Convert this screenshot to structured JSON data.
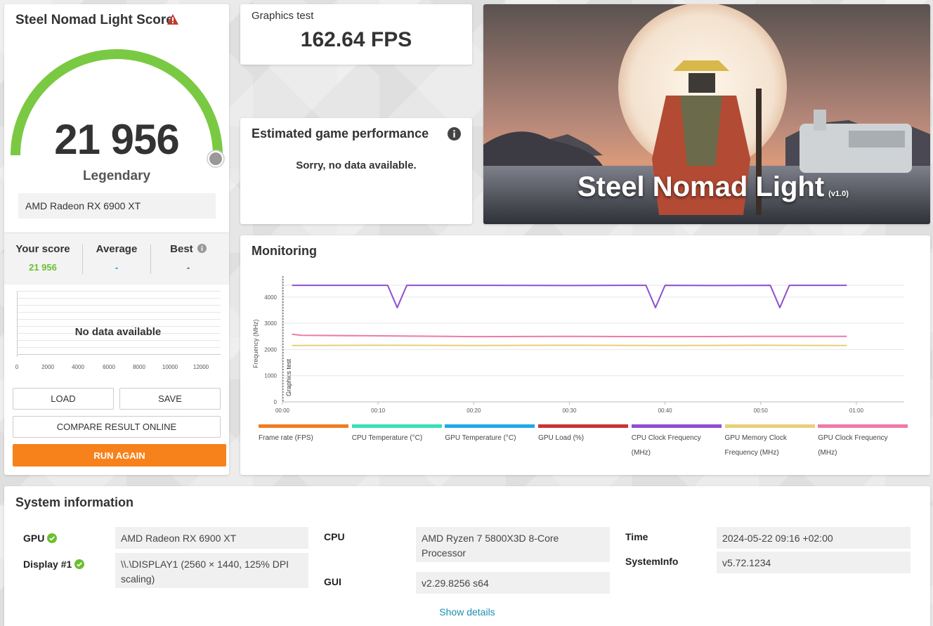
{
  "score_panel": {
    "title": "Steel Nomad Light Score",
    "warning_icon": "warning-icon",
    "score": "21 956",
    "gauge_fraction": 1.0,
    "rank": "Legendary",
    "gpu": "AMD Radeon RX 6900 XT",
    "compare": {
      "your_score_label": "Your score",
      "your_score_value": "21 956",
      "average_label": "Average",
      "average_value": "-",
      "best_label": "Best",
      "best_value": "-"
    },
    "histogram": {
      "message": "No data available",
      "ticks": [
        "0",
        "2000",
        "4000",
        "6000",
        "8000",
        "10000",
        "12000"
      ]
    },
    "buttons": {
      "load": "LOAD",
      "save": "SAVE",
      "compare": "COMPARE RESULT ONLINE",
      "run_again": "RUN AGAIN"
    }
  },
  "graphics_test": {
    "label": "Graphics test",
    "value": "162.64 FPS"
  },
  "estimate": {
    "title": "Estimated game performance",
    "message": "Sorry, no data available."
  },
  "hero": {
    "title": "Steel Nomad Light",
    "version": "(v1.0)"
  },
  "monitoring": {
    "title": "Monitoring",
    "y_axis_label": "Frequency (MHz)",
    "phase_label": "Graphics test",
    "legend": [
      {
        "label": "Frame rate (FPS)",
        "color": "#f07d22"
      },
      {
        "label": "CPU Temperature (°C)",
        "color": "#35e0b9"
      },
      {
        "label": "GPU Temperature (°C)",
        "color": "#1ea8ea"
      },
      {
        "label": "GPU Load (%)",
        "color": "#cc3333"
      },
      {
        "label": "CPU Clock Frequency (MHz)",
        "color": "#8f4fd0"
      },
      {
        "label": "GPU Memory Clock Frequency (MHz)",
        "color": "#e8d07a"
      },
      {
        "label": "GPU Clock Frequency (MHz)",
        "color": "#ee7aa8"
      }
    ]
  },
  "chart_data": {
    "type": "line",
    "title": "",
    "xlabel": "",
    "ylabel": "Frequency (MHz)",
    "x_ticks": [
      "00:00",
      "00:10",
      "00:20",
      "00:30",
      "00:40",
      "00:50",
      "01:00"
    ],
    "y_ticks": [
      0,
      1000,
      2000,
      3000,
      4000
    ],
    "ylim": [
      0,
      4800
    ],
    "xlim": [
      0,
      65
    ],
    "grid": true,
    "series": [
      {
        "name": "CPU Clock Frequency (MHz)",
        "color": "#8f4fd0",
        "x": [
          1,
          11,
          12,
          13,
          20,
          30,
          38,
          39,
          40,
          45,
          51,
          52,
          53,
          59
        ],
        "y": [
          4450,
          4450,
          3600,
          4450,
          4450,
          4440,
          4450,
          3600,
          4450,
          4440,
          4450,
          3600,
          4450,
          4450
        ]
      },
      {
        "name": "GPU Clock Frequency (MHz)",
        "color": "#ee7aa8",
        "x": [
          1,
          2,
          10,
          20,
          30,
          40,
          50,
          59
        ],
        "y": [
          2580,
          2540,
          2520,
          2490,
          2500,
          2490,
          2500,
          2500
        ]
      },
      {
        "name": "GPU Memory Clock Frequency (MHz)",
        "color": "#e8d07a",
        "x": [
          1,
          10,
          20,
          30,
          40,
          50,
          59
        ],
        "y": [
          2150,
          2160,
          2150,
          2160,
          2150,
          2160,
          2150
        ]
      }
    ]
  },
  "system_info": {
    "title": "System information",
    "gpu_label": "GPU",
    "gpu_value": "AMD Radeon RX 6900 XT",
    "display_label": "Display #1",
    "display_value": "\\\\.\\DISPLAY1 (2560 × 1440, 125% DPI scaling)",
    "cpu_label": "CPU",
    "cpu_value": "AMD Ryzen 7 5800X3D 8-Core Processor",
    "gui_label": "GUI",
    "gui_value": "v2.29.8256 s64",
    "time_label": "Time",
    "time_value": "2024-05-22 09:16 +02:00",
    "sysinfo_label": "SystemInfo",
    "sysinfo_value": "v5.72.1234",
    "show_details": "Show details"
  },
  "colors": {
    "accent_orange": "#f7821b",
    "gauge_green": "#7ac943",
    "score_green": "#6cbf2e",
    "link_blue": "#1a8fb3"
  }
}
